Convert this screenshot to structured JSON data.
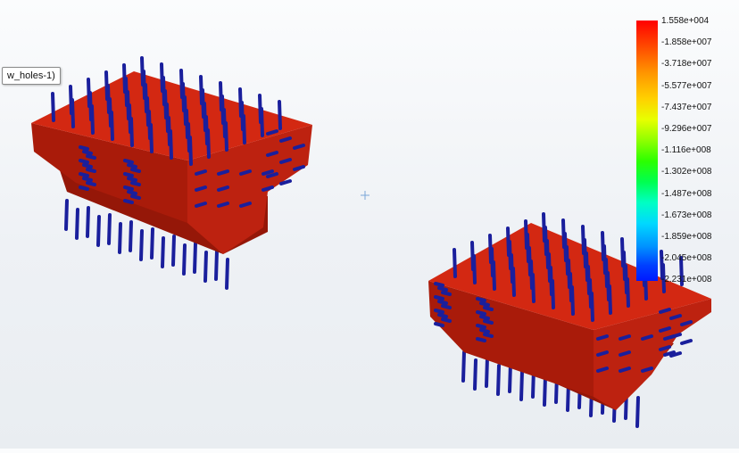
{
  "viewport": {
    "part_label": "w_holes-1)"
  },
  "legend": {
    "ticks": [
      "1.558e+004",
      "-1.858e+007",
      "-3.718e+007",
      "-5.577e+007",
      "-7.437e+007",
      "-9.296e+007",
      "-1.116e+008",
      "-1.302e+008",
      "-1.487e+008",
      "-1.673e+008",
      "-1.859e+008",
      "-2.045e+008",
      "-2.231e+008"
    ]
  },
  "colors": {
    "part_top": "#d32812",
    "part_front": "#a91b0a",
    "part_side": "#bd2210",
    "fixture": "#1a1f9c"
  }
}
